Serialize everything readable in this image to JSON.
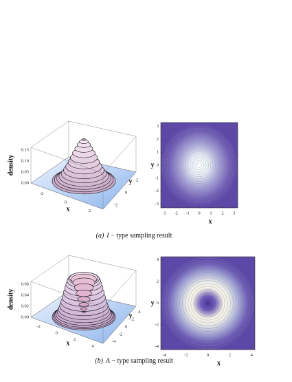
{
  "panels": [
    {
      "caption": {
        "label": "(a)",
        "symbol": "I",
        "text": " − type sampling result"
      },
      "surface": {
        "z_label": "density",
        "x_label": "x",
        "y_label": "y",
        "zticks": [
          "0.15",
          "0.10",
          "0.05",
          "0.00"
        ],
        "xticks": [
          "-2",
          "0",
          "2"
        ],
        "yticks": [
          "2",
          "0",
          "-2"
        ],
        "shape": "peak"
      },
      "density": {
        "x_label": "x",
        "y_label": "y",
        "xlim": [
          -3.3,
          3.3
        ],
        "ylim": [
          -3.3,
          3.3
        ],
        "xticks": [
          -3,
          -2,
          -1,
          0,
          1,
          2,
          3
        ],
        "yticks": [
          -3,
          -2,
          -1,
          0,
          1,
          2,
          3
        ],
        "shape": "peak"
      }
    },
    {
      "caption": {
        "label": "(b)",
        "symbol": "A",
        "text": " − type sampling result"
      },
      "surface": {
        "z_label": "density",
        "x_label": "x",
        "y_label": "y",
        "zticks": [
          "0.06",
          "0.04",
          "0.02",
          "0.00"
        ],
        "xticks": [
          "-2",
          "0",
          "2",
          "4"
        ],
        "yticks": [
          "4",
          "2",
          "0",
          "-2",
          "-4"
        ],
        "shape": "ring"
      },
      "density": {
        "x_label": "x",
        "y_label": "y",
        "xlim": [
          -4.3,
          4.3
        ],
        "ylim": [
          -4.3,
          4.3
        ],
        "xticks": [
          -4,
          -2,
          0,
          2,
          4
        ],
        "yticks": [
          -4,
          -2,
          0,
          2,
          4
        ],
        "shape": "ring"
      }
    }
  ]
}
